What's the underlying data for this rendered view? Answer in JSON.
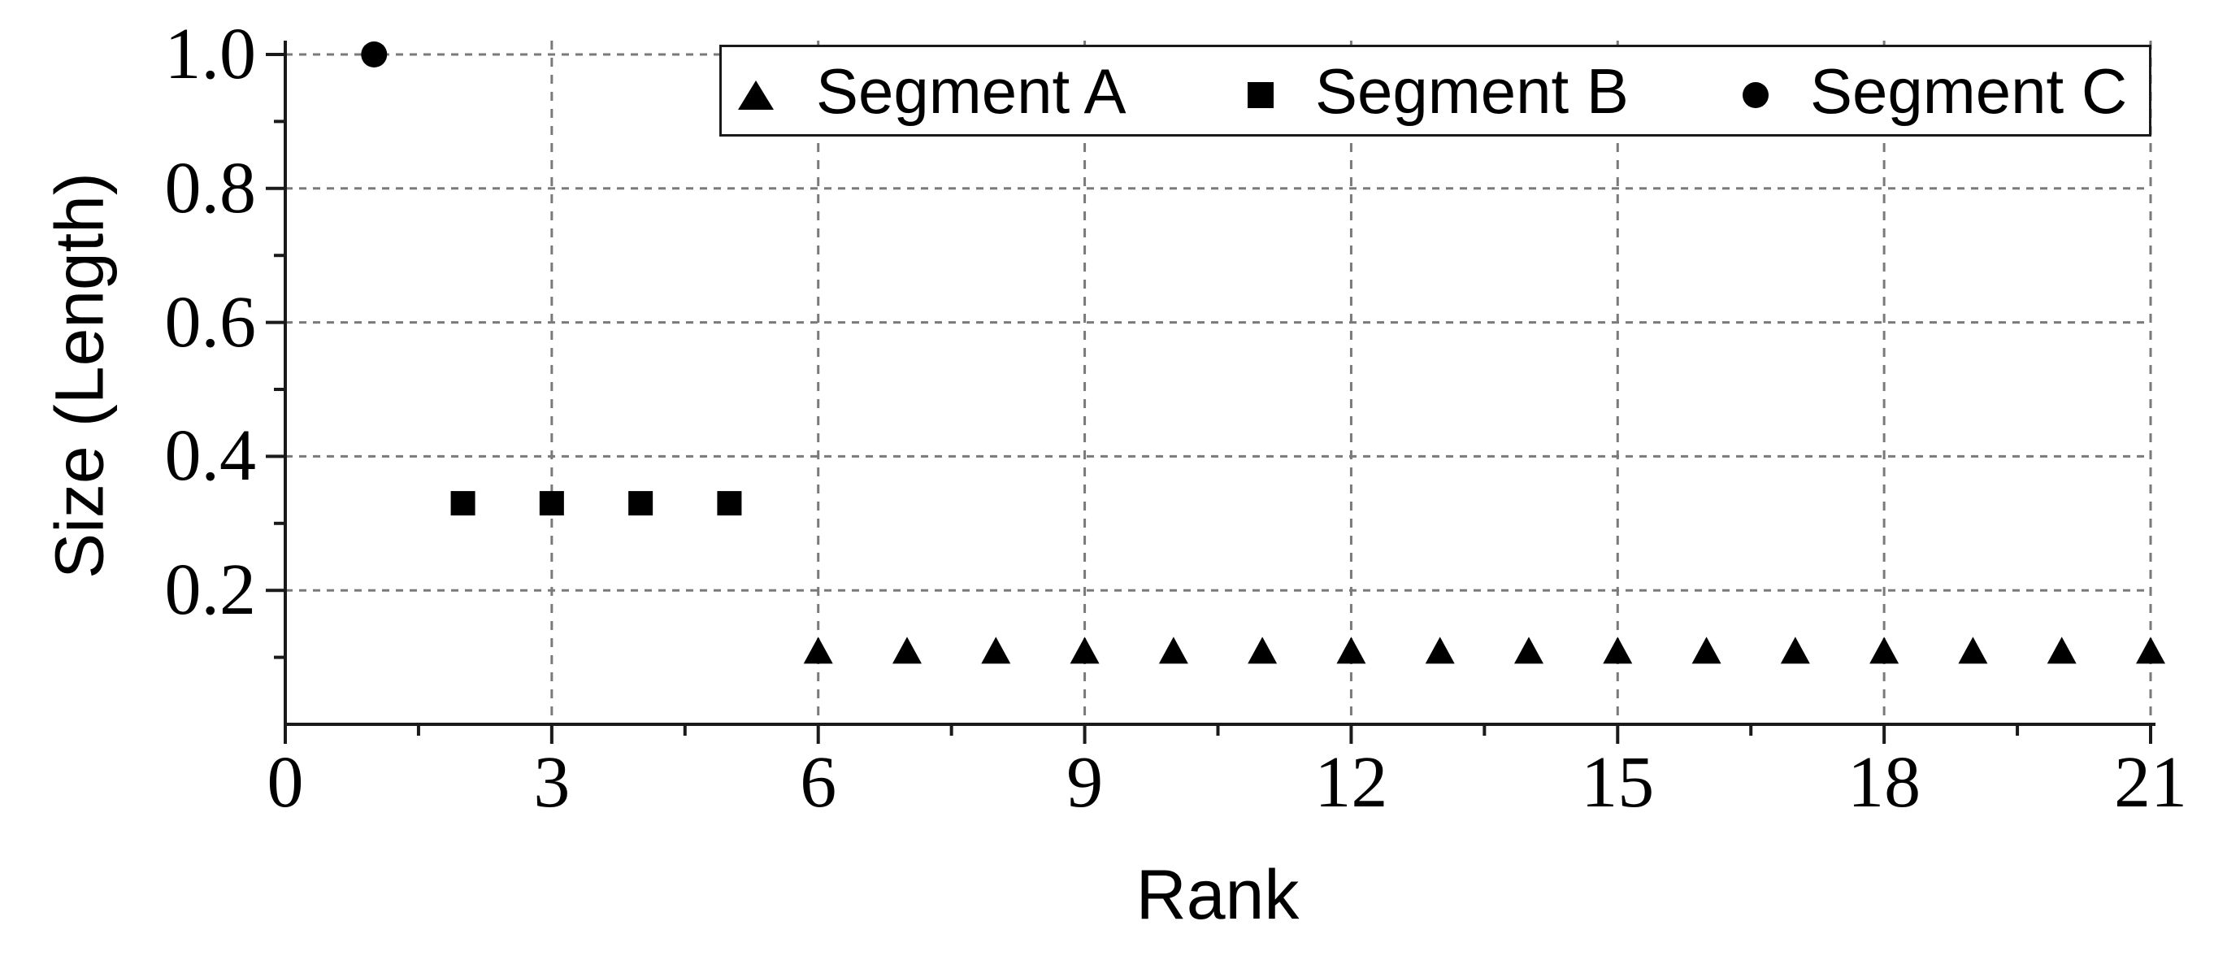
{
  "figure": {
    "background": "#ffffff",
    "text_color": "#000000",
    "axis_color": "#1a1a1a",
    "grid_color": "#7a7a7a",
    "marker_color": "#000000"
  },
  "chart_data": {
    "type": "scatter",
    "title": "",
    "xlabel": "Rank",
    "ylabel": "Size (Length)",
    "xlim": [
      0,
      21
    ],
    "ylim": [
      0,
      1.02
    ],
    "grid": true,
    "legend_position": "top-right-inside",
    "x_major_ticks": [
      0,
      3,
      6,
      9,
      12,
      15,
      18,
      21
    ],
    "x_tick_labels": [
      "0",
      "3",
      "6",
      "9",
      "12",
      "15",
      "18",
      "21"
    ],
    "x_minor_ticks": [
      1.5,
      4.5,
      7.5,
      10.5,
      13.5,
      16.5,
      19.5
    ],
    "y_major_ticks": [
      0.2,
      0.4,
      0.6,
      0.8,
      1.0
    ],
    "y_tick_labels": [
      "0.2",
      "0.4",
      "0.6",
      "0.8",
      "1.0"
    ],
    "y_minor_ticks": [
      0.1,
      0.3,
      0.5,
      0.7,
      0.9
    ],
    "series": [
      {
        "name": "Segment A",
        "marker": "triangle",
        "color": "#000000",
        "x": [
          6,
          7,
          8,
          9,
          10,
          11,
          12,
          13,
          14,
          15,
          16,
          17,
          18,
          19,
          20,
          21
        ],
        "y": [
          0.11,
          0.11,
          0.11,
          0.11,
          0.11,
          0.11,
          0.11,
          0.11,
          0.11,
          0.11,
          0.11,
          0.11,
          0.11,
          0.11,
          0.11,
          0.11
        ]
      },
      {
        "name": "Segment B",
        "marker": "square",
        "color": "#000000",
        "x": [
          2,
          3,
          4,
          5
        ],
        "y": [
          0.33,
          0.33,
          0.33,
          0.33
        ]
      },
      {
        "name": "Segment C",
        "marker": "circle",
        "color": "#000000",
        "x": [
          1
        ],
        "y": [
          1.0
        ]
      }
    ]
  }
}
